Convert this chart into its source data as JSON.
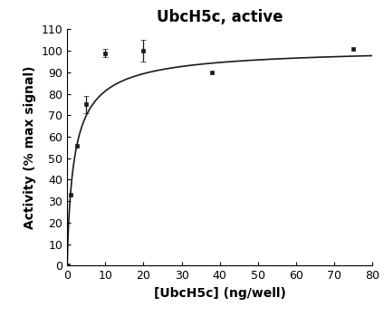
{
  "title": "UbcH5c, active",
  "xlabel": "[UbcH5c] (ng/well)",
  "ylabel": "Activity (% max signal)",
  "xlim": [
    0,
    80
  ],
  "ylim": [
    0,
    110
  ],
  "xticks": [
    0,
    10,
    20,
    30,
    40,
    50,
    60,
    70,
    80
  ],
  "yticks": [
    0,
    10,
    20,
    30,
    40,
    50,
    60,
    70,
    80,
    90,
    100,
    110
  ],
  "data_x": [
    0.3,
    1.0,
    2.5,
    5.0,
    10.0,
    20.0,
    38.0,
    75.0
  ],
  "data_y": [
    0.0,
    33.0,
    56.0,
    75.0,
    99.0,
    100.0,
    90.0,
    101.0
  ],
  "data_yerr": [
    0.0,
    0.0,
    0.0,
    4.0,
    2.0,
    5.0,
    0.0,
    0.0
  ],
  "curve_color": "#1a1a1a",
  "marker_color": "#1a1a1a",
  "background_color": "#ffffff",
  "title_fontsize": 12,
  "label_fontsize": 10,
  "tick_fontsize": 9,
  "hill_Vmax": 102.0,
  "hill_K": 2.0,
  "hill_n": 0.85
}
